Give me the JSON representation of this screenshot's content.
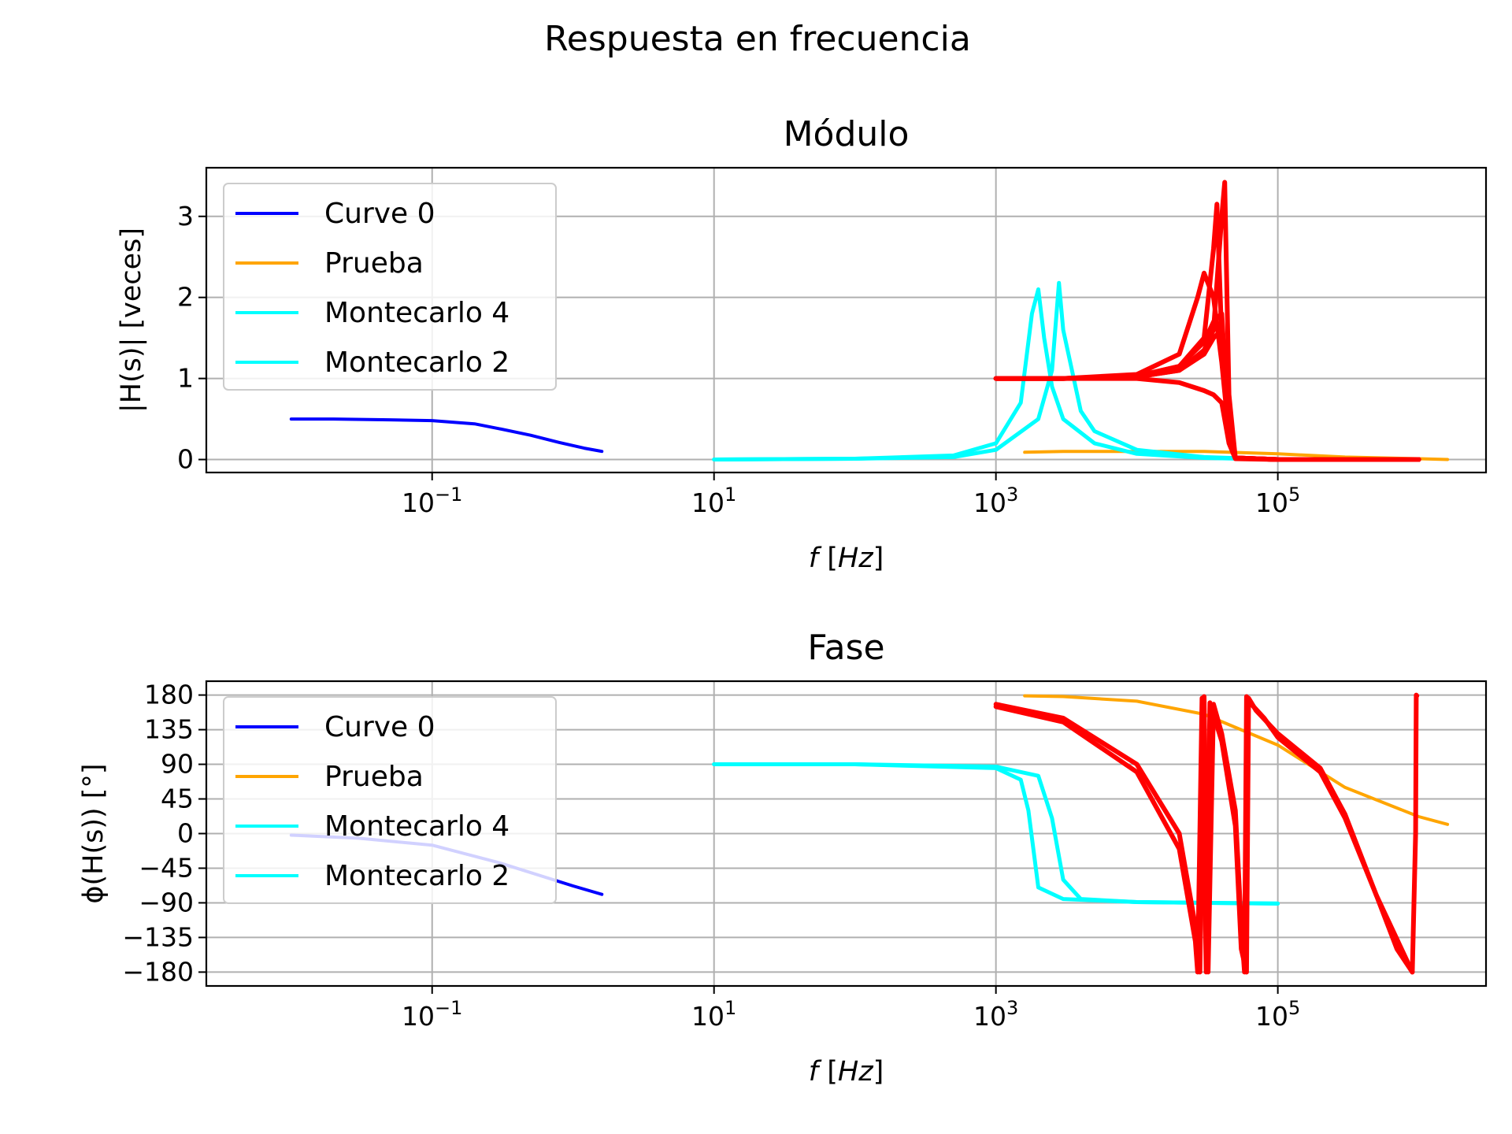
{
  "figure": {
    "suptitle": "Respuesta en frecuencia"
  },
  "chart_data": [
    {
      "type": "line",
      "id": "modulo",
      "title": "Módulo",
      "xlabel": "f [Hz]",
      "ylabel": "|H(s)| [veces]",
      "xscale": "log",
      "xlim": [
        0.0025,
        3000000
      ],
      "ylim": [
        -0.16,
        3.6
      ],
      "x_ticks": [
        0.1,
        10,
        1000,
        100000
      ],
      "x_tick_labels": [
        {
          "base": "10",
          "exp": "−1"
        },
        {
          "base": "10",
          "exp": "1"
        },
        {
          "base": "10",
          "exp": "3"
        },
        {
          "base": "10",
          "exp": "5"
        }
      ],
      "y_ticks": [
        0,
        1,
        2,
        3
      ],
      "y_tick_labels": [
        "0",
        "1",
        "2",
        "3"
      ],
      "grid": true,
      "legend": {
        "position": "upper-left",
        "entries": [
          {
            "label": "Curve 0",
            "color": "#0000ff"
          },
          {
            "label": "Prueba",
            "color": "#ffa500"
          },
          {
            "label": "Montecarlo 4",
            "color": "#00ffff"
          },
          {
            "label": "Montecarlo 2",
            "color": "#00ffff"
          }
        ]
      },
      "series": [
        {
          "legend": "Curve 0",
          "color": "#0000ff",
          "x": [
            0.01,
            0.02,
            0.05,
            0.1,
            0.2,
            0.3,
            0.5,
            0.8,
            1.2,
            1.6
          ],
          "y": [
            0.5,
            0.5,
            0.49,
            0.48,
            0.44,
            0.38,
            0.3,
            0.21,
            0.14,
            0.1
          ]
        },
        {
          "legend": "Prueba",
          "color": "#ffa500",
          "x": [
            1600,
            3000,
            10000,
            30000,
            100000,
            300000,
            1000000,
            1600000
          ],
          "y": [
            0.09,
            0.1,
            0.1,
            0.1,
            0.07,
            0.03,
            0.01,
            0.0
          ]
        },
        {
          "legend": "Montecarlo 4",
          "color": "#00ffff",
          "x": [
            10,
            100,
            500,
            1000,
            1500,
            1800,
            2000,
            2200,
            2500,
            3000,
            5000,
            10000,
            30000,
            100000
          ],
          "y": [
            0.0,
            0.01,
            0.05,
            0.2,
            0.7,
            1.8,
            2.1,
            1.5,
            0.9,
            0.5,
            0.2,
            0.07,
            0.02,
            0.0
          ]
        },
        {
          "legend": "Montecarlo 2",
          "color": "#00ffff",
          "x": [
            10,
            100,
            500,
            1000,
            2000,
            2500,
            2800,
            3000,
            4000,
            5000,
            10000,
            30000,
            100000
          ],
          "y": [
            0.0,
            0.01,
            0.03,
            0.12,
            0.5,
            1.1,
            2.18,
            1.6,
            0.6,
            0.35,
            0.12,
            0.03,
            0.0
          ]
        },
        {
          "color": "#ff0000",
          "x": [
            1000,
            3000,
            10000,
            20000,
            30000,
            35000,
            40000,
            45000,
            50000,
            100000,
            1000000
          ],
          "y": [
            1.0,
            1.0,
            1.0,
            0.95,
            0.85,
            0.8,
            0.7,
            0.2,
            0.01,
            0.0,
            0.0
          ]
        },
        {
          "color": "#ff0000",
          "x": [
            1000,
            3000,
            10000,
            20000,
            30000,
            35000,
            40000,
            45000,
            50000,
            100000,
            1000000
          ],
          "y": [
            1.0,
            1.0,
            1.02,
            1.1,
            1.3,
            1.5,
            1.6,
            0.3,
            0.02,
            0.0,
            0.0
          ]
        },
        {
          "color": "#ff0000",
          "x": [
            1000,
            3000,
            10000,
            20000,
            30000,
            35000,
            40000,
            45000,
            50000,
            100000,
            1000000
          ],
          "y": [
            1.0,
            1.0,
            1.03,
            1.15,
            1.45,
            1.7,
            1.8,
            0.35,
            0.02,
            0.0,
            0.0
          ]
        },
        {
          "color": "#ff0000",
          "x": [
            1000,
            3000,
            10000,
            20000,
            27000,
            30000,
            35000,
            40000,
            45000,
            50000,
            100000,
            1000000
          ],
          "y": [
            1.0,
            1.0,
            1.05,
            1.3,
            2.0,
            2.3,
            2.0,
            1.2,
            0.3,
            0.02,
            0.0,
            0.0
          ]
        },
        {
          "color": "#ff0000",
          "x": [
            1000,
            3000,
            10000,
            20000,
            30000,
            35000,
            37000,
            40000,
            45000,
            50000,
            100000,
            1000000
          ],
          "y": [
            1.0,
            1.0,
            1.03,
            1.15,
            1.5,
            2.6,
            3.15,
            1.5,
            0.3,
            0.02,
            0.0,
            0.0
          ]
        },
        {
          "color": "#ff0000",
          "x": [
            1000,
            3000,
            10000,
            20000,
            30000,
            35000,
            40000,
            42000,
            45000,
            50000,
            100000,
            1000000
          ],
          "y": [
            1.0,
            1.0,
            1.02,
            1.1,
            1.35,
            1.6,
            3.0,
            3.42,
            0.8,
            0.02,
            0.0,
            0.0
          ]
        }
      ]
    },
    {
      "type": "line",
      "id": "fase",
      "title": "Fase",
      "xlabel": "f [Hz]",
      "ylabel": "ϕ(H(s)) [°]",
      "xscale": "log",
      "xlim": [
        0.0025,
        3000000
      ],
      "ylim": [
        -198,
        198
      ],
      "x_ticks": [
        0.1,
        10,
        1000,
        100000
      ],
      "x_tick_labels": [
        {
          "base": "10",
          "exp": "−1"
        },
        {
          "base": "10",
          "exp": "1"
        },
        {
          "base": "10",
          "exp": "3"
        },
        {
          "base": "10",
          "exp": "5"
        }
      ],
      "y_ticks": [
        180,
        135,
        90,
        45,
        0,
        -45,
        -90,
        -135,
        -180
      ],
      "y_tick_labels": [
        "180",
        "135",
        "90",
        "45",
        "0",
        "−45",
        "−90",
        "−135",
        "−180"
      ],
      "grid": true,
      "legend": {
        "position": "upper-left",
        "entries": [
          {
            "label": "Curve 0",
            "color": "#0000ff"
          },
          {
            "label": "Prueba",
            "color": "#ffa500"
          },
          {
            "label": "Montecarlo 4",
            "color": "#00ffff"
          },
          {
            "label": "Montecarlo 2",
            "color": "#00ffff"
          }
        ]
      },
      "series": [
        {
          "legend": "Curve 0",
          "color": "#0000ff",
          "x": [
            0.01,
            0.03,
            0.1,
            0.3,
            1.0,
            1.6
          ],
          "y": [
            -2,
            -6,
            -15,
            -38,
            -68,
            -79
          ]
        },
        {
          "legend": "Prueba",
          "color": "#ffa500",
          "x": [
            1600,
            3000,
            10000,
            30000,
            100000,
            300000,
            1000000,
            1600000
          ],
          "y": [
            179,
            178,
            172,
            155,
            115,
            60,
            22,
            12
          ]
        },
        {
          "legend": "Montecarlo 4",
          "color": "#00ffff",
          "x": [
            10,
            100,
            1000,
            1500,
            1700,
            2000,
            3000,
            10000,
            100000
          ],
          "y": [
            90,
            90,
            85,
            70,
            30,
            -70,
            -85,
            -89,
            -91
          ]
        },
        {
          "legend": "Montecarlo 2",
          "color": "#00ffff",
          "x": [
            10,
            100,
            1000,
            2000,
            2500,
            3000,
            4000,
            10000,
            100000
          ],
          "y": [
            90,
            90,
            87,
            75,
            20,
            -60,
            -85,
            -89,
            -91
          ]
        },
        {
          "color": "#ff0000",
          "x": [
            1000,
            3000,
            10000,
            20000,
            26000,
            28000,
            30000,
            32000,
            35000,
            40000,
            50000,
            55000,
            58000,
            60000,
            65000,
            80000,
            100000,
            200000,
            300000,
            500000,
            700000,
            900000,
            950000,
            960000,
            970000
          ],
          "y": [
            168,
            150,
            90,
            0,
            -120,
            -180,
            178,
            -180,
            168,
            130,
            30,
            -120,
            -180,
            178,
            168,
            150,
            125,
            80,
            20,
            -80,
            -150,
            -180,
            0,
            180,
            179
          ]
        },
        {
          "color": "#ff0000",
          "x": [
            1000,
            3000,
            10000,
            20000,
            26000,
            27000,
            29000,
            31000,
            33000,
            40000,
            50000,
            55000,
            60000,
            62000,
            70000,
            100000,
            200000,
            300000,
            500000,
            800000,
            900000
          ],
          "y": [
            165,
            145,
            80,
            -20,
            -140,
            -180,
            176,
            -180,
            170,
            120,
            10,
            -150,
            -180,
            176,
            160,
            130,
            85,
            25,
            -80,
            -160,
            -180
          ]
        }
      ]
    }
  ]
}
